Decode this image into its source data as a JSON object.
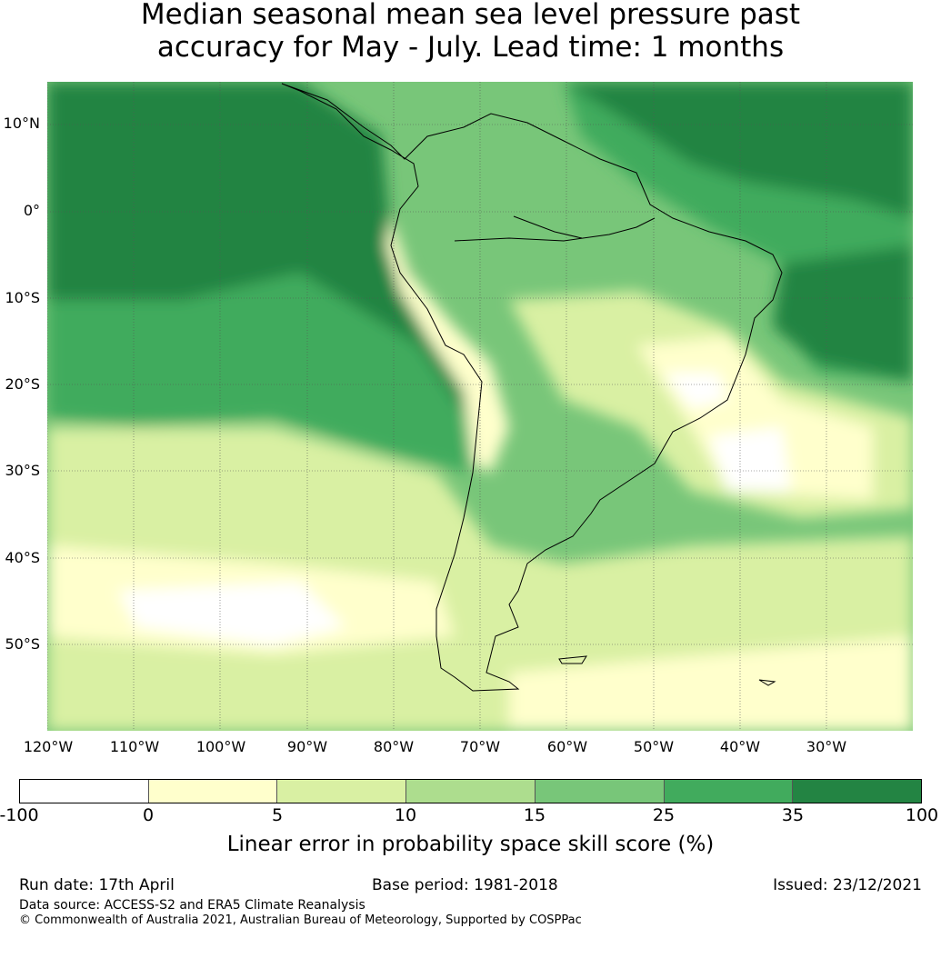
{
  "title": {
    "line1": "Median seasonal mean sea level pressure past",
    "line2": "accuracy for May - July. Lead time: 1 months"
  },
  "map": {
    "lat_labels": [
      "10°N",
      "0°",
      "10°S",
      "20°S",
      "30°S",
      "40°S",
      "50°S"
    ],
    "lon_labels": [
      "120°W",
      "110°W",
      "100°W",
      "90°W",
      "80°W",
      "70°W",
      "60°W",
      "50°W",
      "40°W",
      "30°W"
    ],
    "lon_range": [
      -125,
      -25
    ],
    "lat_range": [
      -60,
      15
    ]
  },
  "colorbar": {
    "colors": [
      "#ffffff",
      "#ffffcc",
      "#d9f0a3",
      "#addd8e",
      "#78c679",
      "#41ab5d",
      "#238443"
    ],
    "ticks": [
      "-100",
      "0",
      "5",
      "10",
      "15",
      "25",
      "35",
      "100"
    ],
    "label": "Linear error in probability space skill score (%)"
  },
  "footer": {
    "run_date": "Run date: 17th April",
    "base_period": "Base period: 1981-2018",
    "issued": "Issued: 23/12/2021",
    "data_source": "Data source: ACCESS-S2 and ERA5 Climate Reanalysis",
    "copyright": "© Commonwealth of Australia 2021, Australian Bureau of Meteorology, Supported by COSPPac"
  }
}
